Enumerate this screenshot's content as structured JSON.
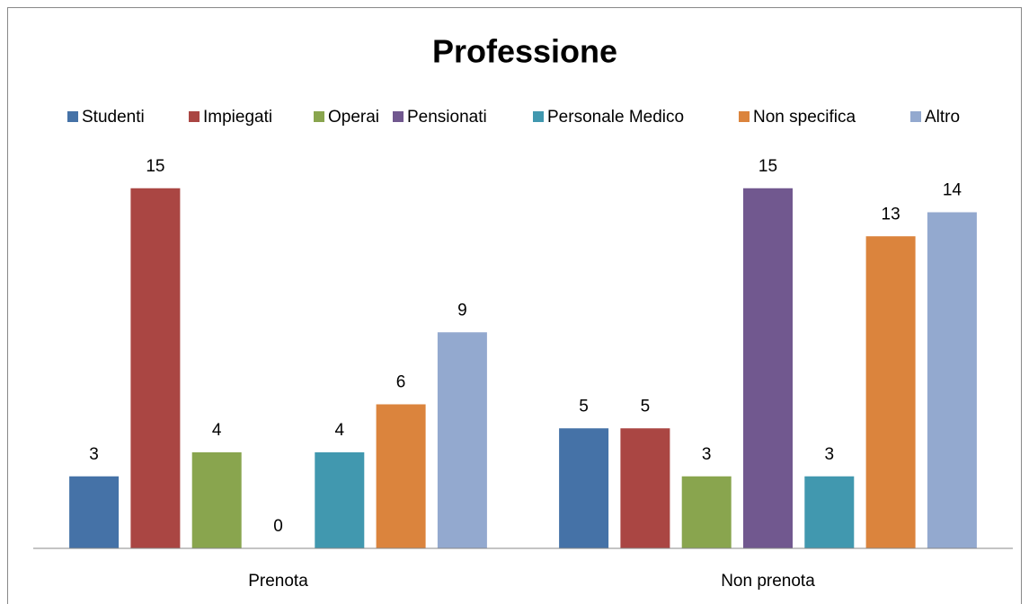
{
  "chart_data": {
    "type": "bar",
    "title": "Professione",
    "categories": [
      "Prenota",
      "Non prenota"
    ],
    "series": [
      {
        "name": "Studenti",
        "color": "#4572a7",
        "values": [
          3,
          5
        ]
      },
      {
        "name": "Impiegati",
        "color": "#aa4643",
        "values": [
          15,
          5
        ]
      },
      {
        "name": "Operai",
        "color": "#89a54e",
        "values": [
          4,
          3
        ]
      },
      {
        "name": "Pensionati",
        "color": "#71588f",
        "values": [
          0,
          15
        ]
      },
      {
        "name": "Personale Medico",
        "color": "#4198af",
        "values": [
          4,
          3
        ]
      },
      {
        "name": "Non specifica",
        "color": "#db843d",
        "values": [
          6,
          13
        ]
      },
      {
        "name": "Altro",
        "color": "#93a9cf",
        "values": [
          9,
          14
        ]
      }
    ],
    "ylim": [
      0,
      16
    ],
    "legend": "top"
  }
}
